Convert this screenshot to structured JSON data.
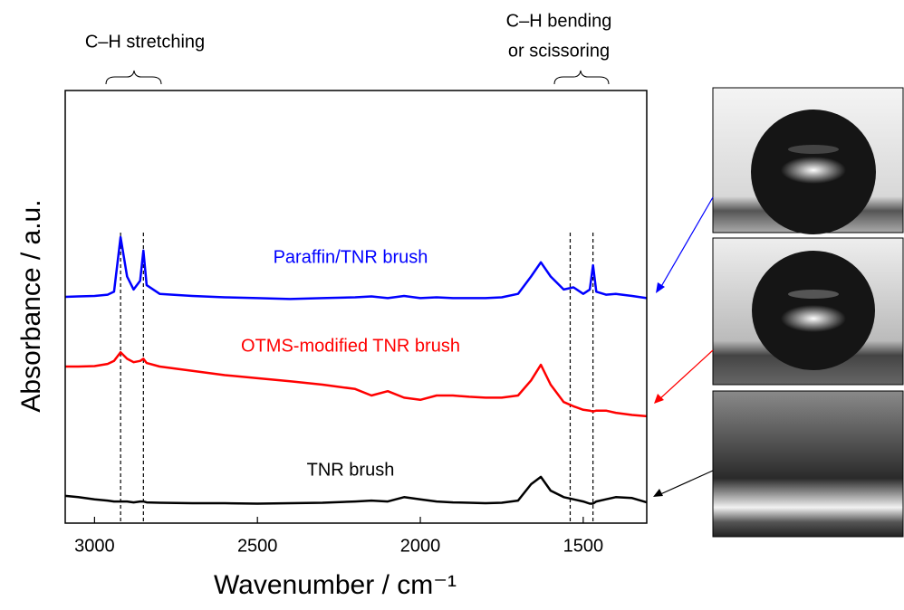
{
  "chart_data": {
    "type": "line",
    "x_label": "Wavenumber / cm⁻¹",
    "y_label": "Absorbance / a.u.",
    "annotations": [
      "C–H stretching",
      "C–H bending",
      "or scissoring"
    ],
    "xlim": [
      3090,
      1305
    ],
    "ylim": [
      0,
      10
    ],
    "xticks": [
      3000,
      2500,
      2000,
      1500
    ],
    "reference_lines": [
      2920,
      2850,
      1540,
      1470
    ],
    "x": [
      3090,
      3050,
      3000,
      2960,
      2940,
      2920,
      2900,
      2880,
      2860,
      2850,
      2840,
      2800,
      2700,
      2600,
      2500,
      2400,
      2300,
      2200,
      2150,
      2100,
      2050,
      2000,
      1950,
      1900,
      1850,
      1800,
      1750,
      1700,
      1660,
      1630,
      1600,
      1560,
      1530,
      1500,
      1480,
      1470,
      1460,
      1430,
      1400,
      1350,
      1305
    ],
    "series": [
      {
        "name": "Paraffin/TNR brush",
        "color": "#0000ff",
        "values": [
          5.23,
          5.24,
          5.25,
          5.28,
          5.35,
          6.61,
          5.7,
          5.4,
          5.6,
          6.3,
          5.5,
          5.3,
          5.25,
          5.22,
          5.2,
          5.18,
          5.2,
          5.22,
          5.24,
          5.2,
          5.25,
          5.2,
          5.22,
          5.2,
          5.2,
          5.2,
          5.22,
          5.3,
          5.7,
          6.03,
          5.7,
          5.4,
          5.45,
          5.3,
          5.4,
          5.96,
          5.35,
          5.28,
          5.3,
          5.25,
          5.2
        ]
      },
      {
        "name": "OTMS-modified TNR brush",
        "color": "#ff0000",
        "values": [
          3.62,
          3.62,
          3.63,
          3.68,
          3.75,
          3.95,
          3.8,
          3.72,
          3.75,
          3.8,
          3.7,
          3.62,
          3.52,
          3.42,
          3.35,
          3.28,
          3.2,
          3.1,
          2.95,
          3.05,
          2.9,
          2.85,
          2.95,
          2.95,
          2.92,
          2.9,
          2.9,
          2.95,
          3.3,
          3.66,
          3.2,
          2.8,
          2.7,
          2.62,
          2.6,
          2.58,
          2.6,
          2.6,
          2.55,
          2.5,
          2.47
        ]
      },
      {
        "name": "TNR brush",
        "color": "#000000",
        "values": [
          0.63,
          0.6,
          0.55,
          0.52,
          0.5,
          0.5,
          0.5,
          0.48,
          0.5,
          0.5,
          0.48,
          0.47,
          0.46,
          0.46,
          0.45,
          0.46,
          0.47,
          0.5,
          0.52,
          0.5,
          0.6,
          0.55,
          0.5,
          0.48,
          0.47,
          0.46,
          0.47,
          0.52,
          0.9,
          1.07,
          0.75,
          0.6,
          0.55,
          0.5,
          0.45,
          0.45,
          0.5,
          0.55,
          0.6,
          0.58,
          0.48
        ]
      }
    ]
  }
}
